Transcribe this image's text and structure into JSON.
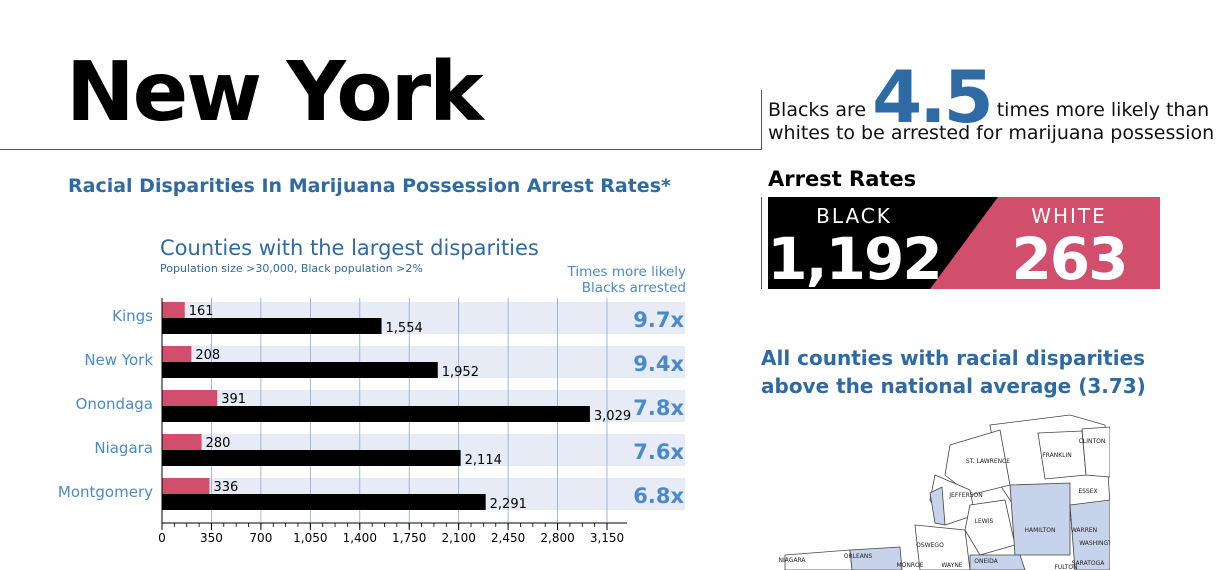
{
  "title": "New York",
  "headline": "Racial Disparities In Marijuana Possession Arrest Rates*",
  "stat": {
    "prefix": "Blacks are",
    "value": "4.5",
    "suffix": "times more likely than",
    "line2": "whites to be arrested for marijuana possession"
  },
  "arrest_rates": {
    "title": "Arrest Rates",
    "black_label": "BLACK",
    "black_value": "1,192",
    "white_label": "WHITE",
    "white_value": "263"
  },
  "map": {
    "title_line1": "All counties with racial disparities",
    "title_line2": "above the national average (3.73)",
    "county_labels": [
      "CLINTON",
      "FRANKLIN",
      "ST. LAWRENCE",
      "ESSEX",
      "JEFFERSON",
      "LEWIS",
      "HAMILTON",
      "WARREN",
      "WASHINGTON",
      "OSWEGO",
      "ONEIDA",
      "SARATOGA",
      "NIAGARA",
      "ORLEANS",
      "MONROE",
      "WAYNE",
      "FULTON"
    ]
  },
  "colors": {
    "black_bar": "#000000",
    "white_bar": "#d14e6c",
    "accent_blue": "#2e6aa3",
    "band": "#e6ebf5",
    "map_fill": "#c7d3ea"
  },
  "chart_data": {
    "type": "bar",
    "title": "Counties with the largest disparities",
    "subtitle": "Population size >30,000, Black population >2%",
    "ratio_header": "Times more likely\nBlacks arrested",
    "categories": [
      "Kings",
      "New York",
      "Onondaga",
      "Niagara",
      "Montgomery"
    ],
    "series": [
      {
        "values": [
          161,
          208,
          391,
          280,
          336
        ],
        "labels": [
          "161",
          "208",
          "391",
          "280",
          "336"
        ]
      },
      {
        "values": [
          1554,
          1952,
          3029,
          2114,
          2291
        ],
        "labels": [
          "1,554",
          "1,952",
          "3,029",
          "2,114",
          "2,291"
        ]
      }
    ],
    "ratios": [
      "9.7x",
      "9.4x",
      "7.8x",
      "7.6x",
      "6.8x"
    ],
    "xlim": [
      0,
      3150
    ],
    "xticks": [
      0,
      350,
      700,
      1050,
      1400,
      1750,
      2100,
      2450,
      2800,
      3150
    ],
    "xtick_labels": [
      "0",
      "350",
      "700",
      "1,050",
      "1,400",
      "1,750",
      "2,100",
      "2,450",
      "2,800",
      "3,150"
    ],
    "grid": true
  }
}
